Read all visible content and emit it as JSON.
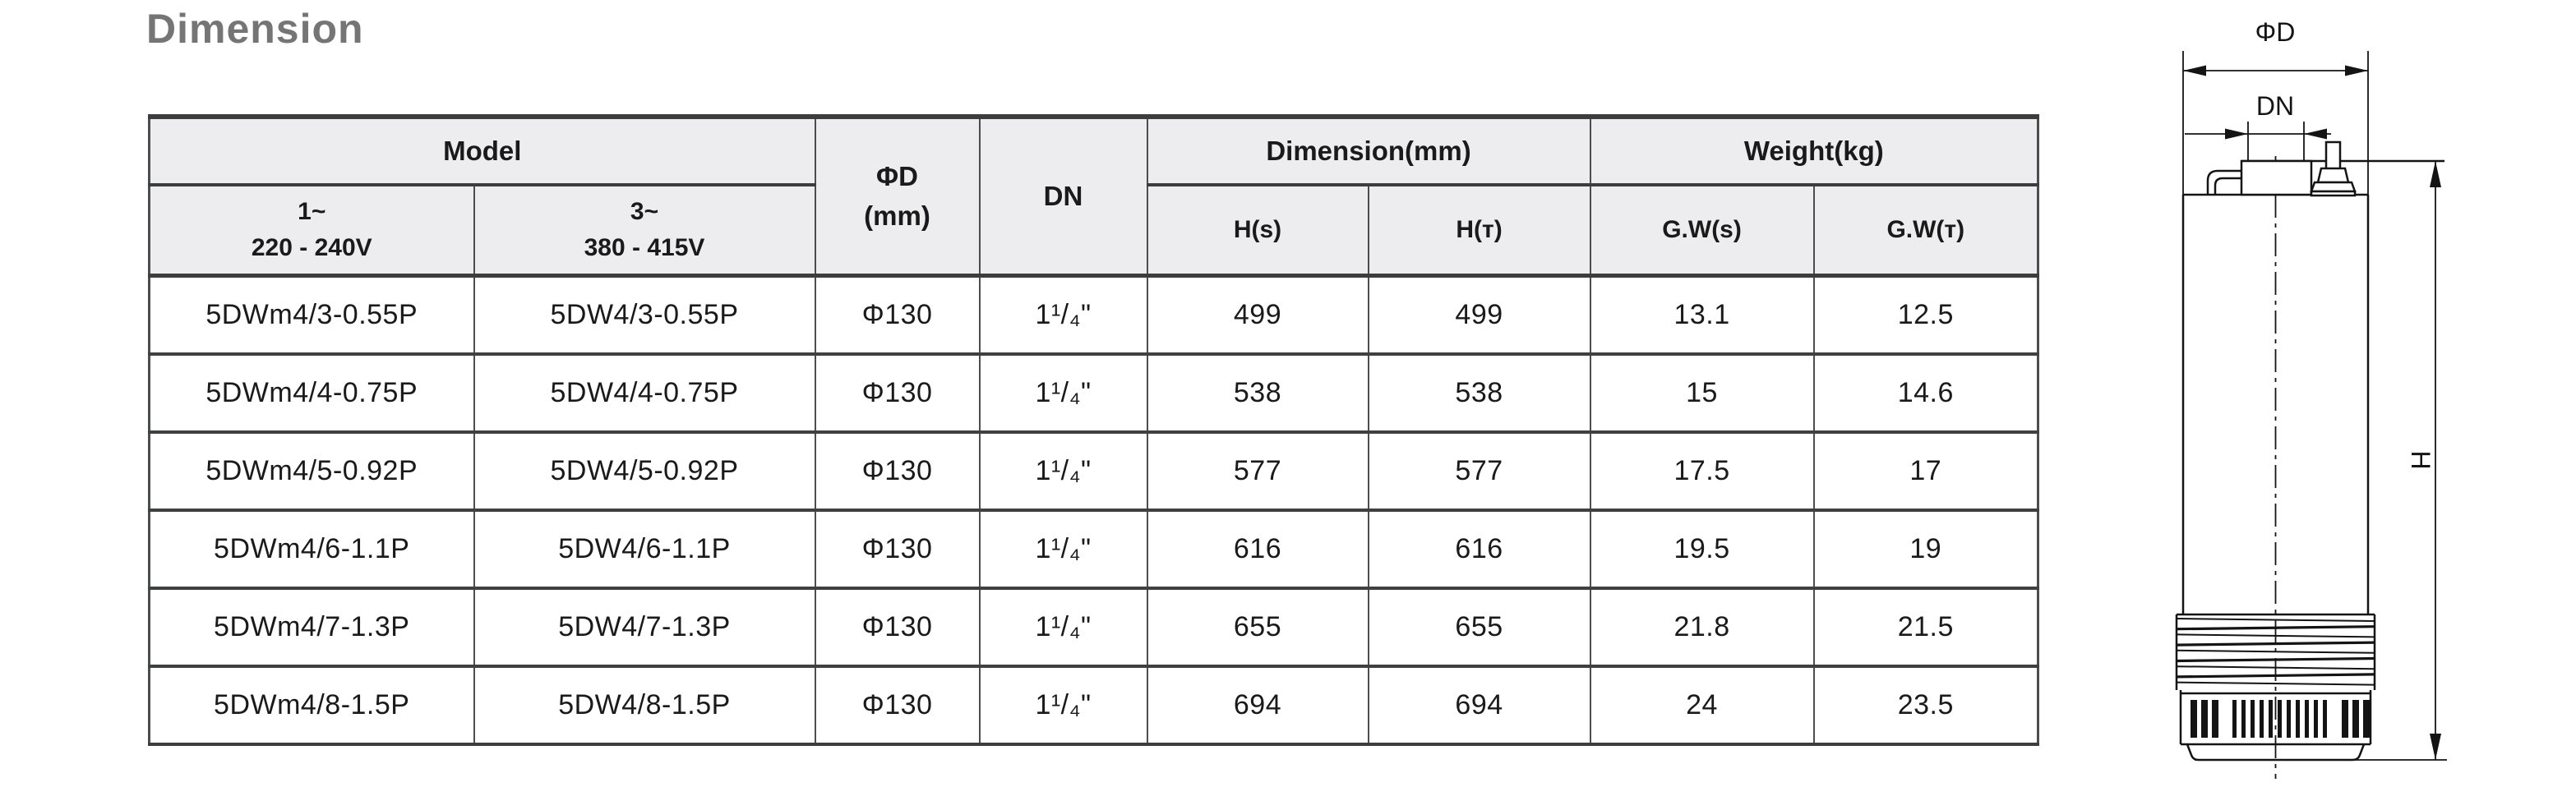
{
  "page": {
    "title": "Dimension"
  },
  "table": {
    "headers": {
      "model": "Model",
      "model_1ph_line1": "1~",
      "model_1ph_line2": "220 - 240V",
      "model_3ph_line1": "3~",
      "model_3ph_line2": "380 - 415V",
      "phi_d_line1": "ΦD",
      "phi_d_line2": "(mm)",
      "dn": "DN",
      "dimension_mm": "Dimension(mm)",
      "weight_kg": "Weight(kg)",
      "h_s": "H(s)",
      "h_t": "H(ᴛ)",
      "gw_s": "G.W(s)",
      "gw_t": "G.W(ᴛ)"
    },
    "rows": [
      {
        "model_1ph": "5DWm4/3-0.55P",
        "model_3ph": "5DW4/3-0.55P",
        "phi_d": "Φ130",
        "dn": "1¹/₄\"",
        "h_s": "499",
        "h_t": "499",
        "gw_s": "13.1",
        "gw_t": "12.5"
      },
      {
        "model_1ph": "5DWm4/4-0.75P",
        "model_3ph": "5DW4/4-0.75P",
        "phi_d": "Φ130",
        "dn": "1¹/₄\"",
        "h_s": "538",
        "h_t": "538",
        "gw_s": "15",
        "gw_t": "14.6"
      },
      {
        "model_1ph": "5DWm4/5-0.92P",
        "model_3ph": "5DW4/5-0.92P",
        "phi_d": "Φ130",
        "dn": "1¹/₄\"",
        "h_s": "577",
        "h_t": "577",
        "gw_s": "17.5",
        "gw_t": "17"
      },
      {
        "model_1ph": "5DWm4/6-1.1P",
        "model_3ph": "5DW4/6-1.1P",
        "phi_d": "Φ130",
        "dn": "1¹/₄\"",
        "h_s": "616",
        "h_t": "616",
        "gw_s": "19.5",
        "gw_t": "19"
      },
      {
        "model_1ph": "5DWm4/7-1.3P",
        "model_3ph": "5DW4/7-1.3P",
        "phi_d": "Φ130",
        "dn": "1¹/₄\"",
        "h_s": "655",
        "h_t": "655",
        "gw_s": "21.8",
        "gw_t": "21.5"
      },
      {
        "model_1ph": "5DWm4/8-1.5P",
        "model_3ph": "5DW4/8-1.5P",
        "phi_d": "Φ130",
        "dn": "1¹/₄\"",
        "h_s": "694",
        "h_t": "694",
        "gw_s": "24",
        "gw_t": "23.5"
      }
    ]
  },
  "diagram": {
    "labels": {
      "phi_d": "ΦD",
      "dn": "DN",
      "h": "H"
    }
  },
  "colors": {
    "header_bg": "#ededef",
    "border_dark": "#3c3d3f",
    "title_gray": "#757575",
    "line_art": "#141414"
  }
}
